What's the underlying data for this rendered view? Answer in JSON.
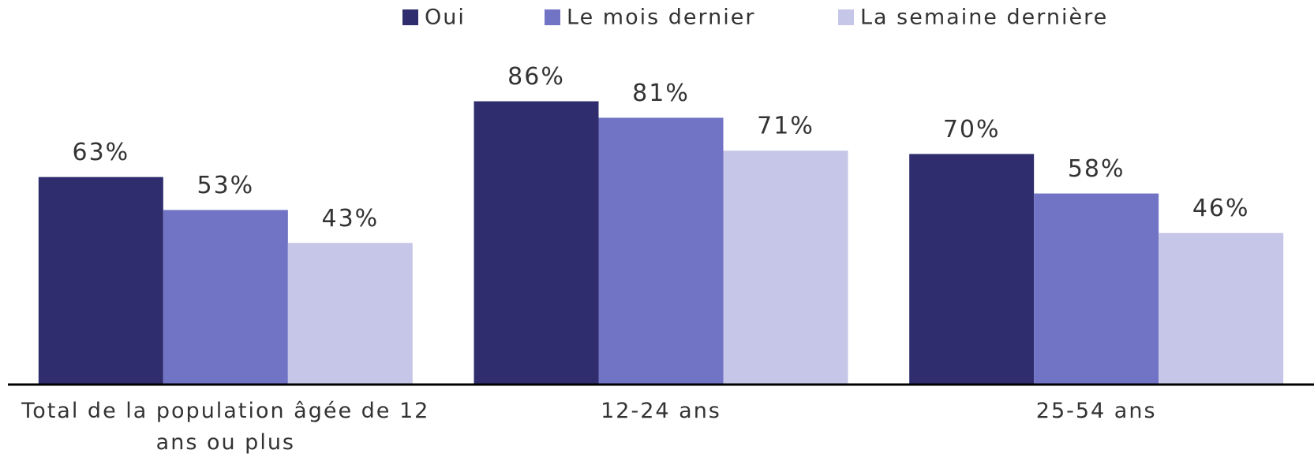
{
  "chart_data": {
    "type": "bar",
    "categories": [
      "Total de la population âgée de 12 ans ou plus",
      "12-24 ans",
      "25-54 ans"
    ],
    "series": [
      {
        "name": "Oui",
        "color": "#2f2d6d",
        "values": [
          63,
          86,
          70
        ],
        "value_labels": [
          "63%",
          "86%",
          "70%"
        ]
      },
      {
        "name": "Le mois dernier",
        "color": "#7173c5",
        "values": [
          53,
          81,
          58
        ],
        "value_labels": [
          "53%",
          "81%",
          "58%"
        ]
      },
      {
        "name": "La semaine dernière",
        "color": "#c6c6e8",
        "values": [
          43,
          71,
          46
        ],
        "value_labels": [
          "43%",
          "71%",
          "46%"
        ]
      }
    ],
    "ylim": [
      0,
      100
    ],
    "legend": "top"
  }
}
